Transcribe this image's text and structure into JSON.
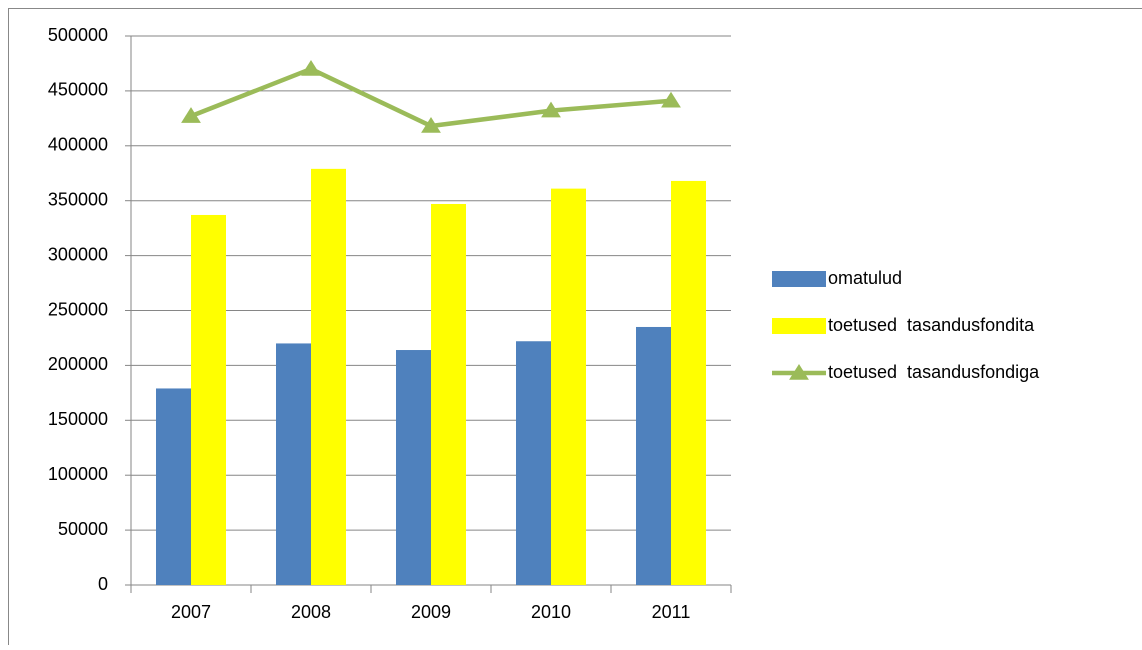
{
  "chart_data": {
    "type": "bar",
    "categories": [
      "2007",
      "2008",
      "2009",
      "2010",
      "2011"
    ],
    "series": [
      {
        "name": "omatulud",
        "type": "bar",
        "color": "#4f81bd",
        "values": [
          179000,
          220000,
          214000,
          222000,
          235000
        ]
      },
      {
        "name": "toetused  tasandusfondita",
        "type": "bar",
        "color": "#ffff00",
        "values": [
          337000,
          379000,
          347000,
          361000,
          368000
        ]
      },
      {
        "name": "toetused  tasandusfondiga",
        "type": "line",
        "color": "#9bbb59",
        "values": [
          427000,
          470000,
          418000,
          432000,
          441000
        ]
      }
    ],
    "ylim": [
      0,
      500000
    ],
    "yticks": [
      0,
      50000,
      100000,
      150000,
      200000,
      250000,
      300000,
      350000,
      400000,
      450000,
      500000
    ],
    "grid": true,
    "legend": "right"
  }
}
